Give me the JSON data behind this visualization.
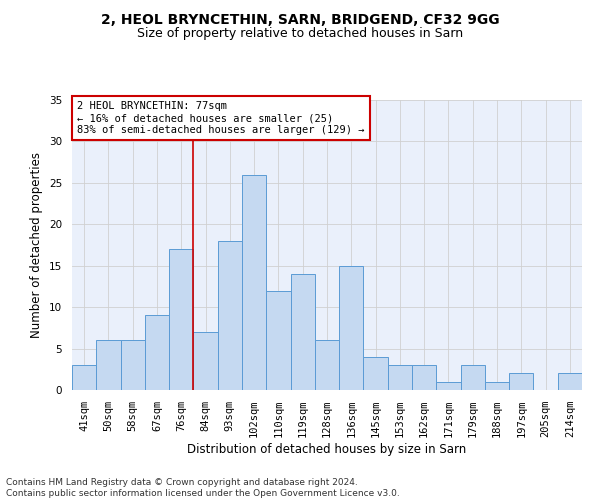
{
  "title1": "2, HEOL BRYNCETHIN, SARN, BRIDGEND, CF32 9GG",
  "title2": "Size of property relative to detached houses in Sarn",
  "xlabel": "Distribution of detached houses by size in Sarn",
  "ylabel": "Number of detached properties",
  "categories": [
    "41sqm",
    "50sqm",
    "58sqm",
    "67sqm",
    "76sqm",
    "84sqm",
    "93sqm",
    "102sqm",
    "110sqm",
    "119sqm",
    "128sqm",
    "136sqm",
    "145sqm",
    "153sqm",
    "162sqm",
    "171sqm",
    "179sqm",
    "188sqm",
    "197sqm",
    "205sqm",
    "214sqm"
  ],
  "values": [
    3,
    6,
    6,
    9,
    17,
    7,
    18,
    26,
    12,
    14,
    6,
    15,
    4,
    3,
    3,
    1,
    3,
    1,
    2,
    0,
    2
  ],
  "bar_color": "#c5d9f1",
  "bar_edge_color": "#5b9bd5",
  "ylim": [
    0,
    35
  ],
  "yticks": [
    0,
    5,
    10,
    15,
    20,
    25,
    30,
    35
  ],
  "grid_color": "#d0d0d0",
  "bg_color": "#eaf0fb",
  "annotation_line1": "2 HEOL BRYNCETHIN: 77sqm",
  "annotation_line2": "← 16% of detached houses are smaller (25)",
  "annotation_line3": "83% of semi-detached houses are larger (129) →",
  "annotation_box_color": "#ffffff",
  "annotation_box_edge": "#cc0000",
  "vline_x": 4.5,
  "vline_color": "#cc0000",
  "footnote": "Contains HM Land Registry data © Crown copyright and database right 2024.\nContains public sector information licensed under the Open Government Licence v3.0.",
  "title1_fontsize": 10,
  "title2_fontsize": 9,
  "xlabel_fontsize": 8.5,
  "ylabel_fontsize": 8.5,
  "tick_fontsize": 7.5,
  "annotation_fontsize": 7.5,
  "footnote_fontsize": 6.5
}
